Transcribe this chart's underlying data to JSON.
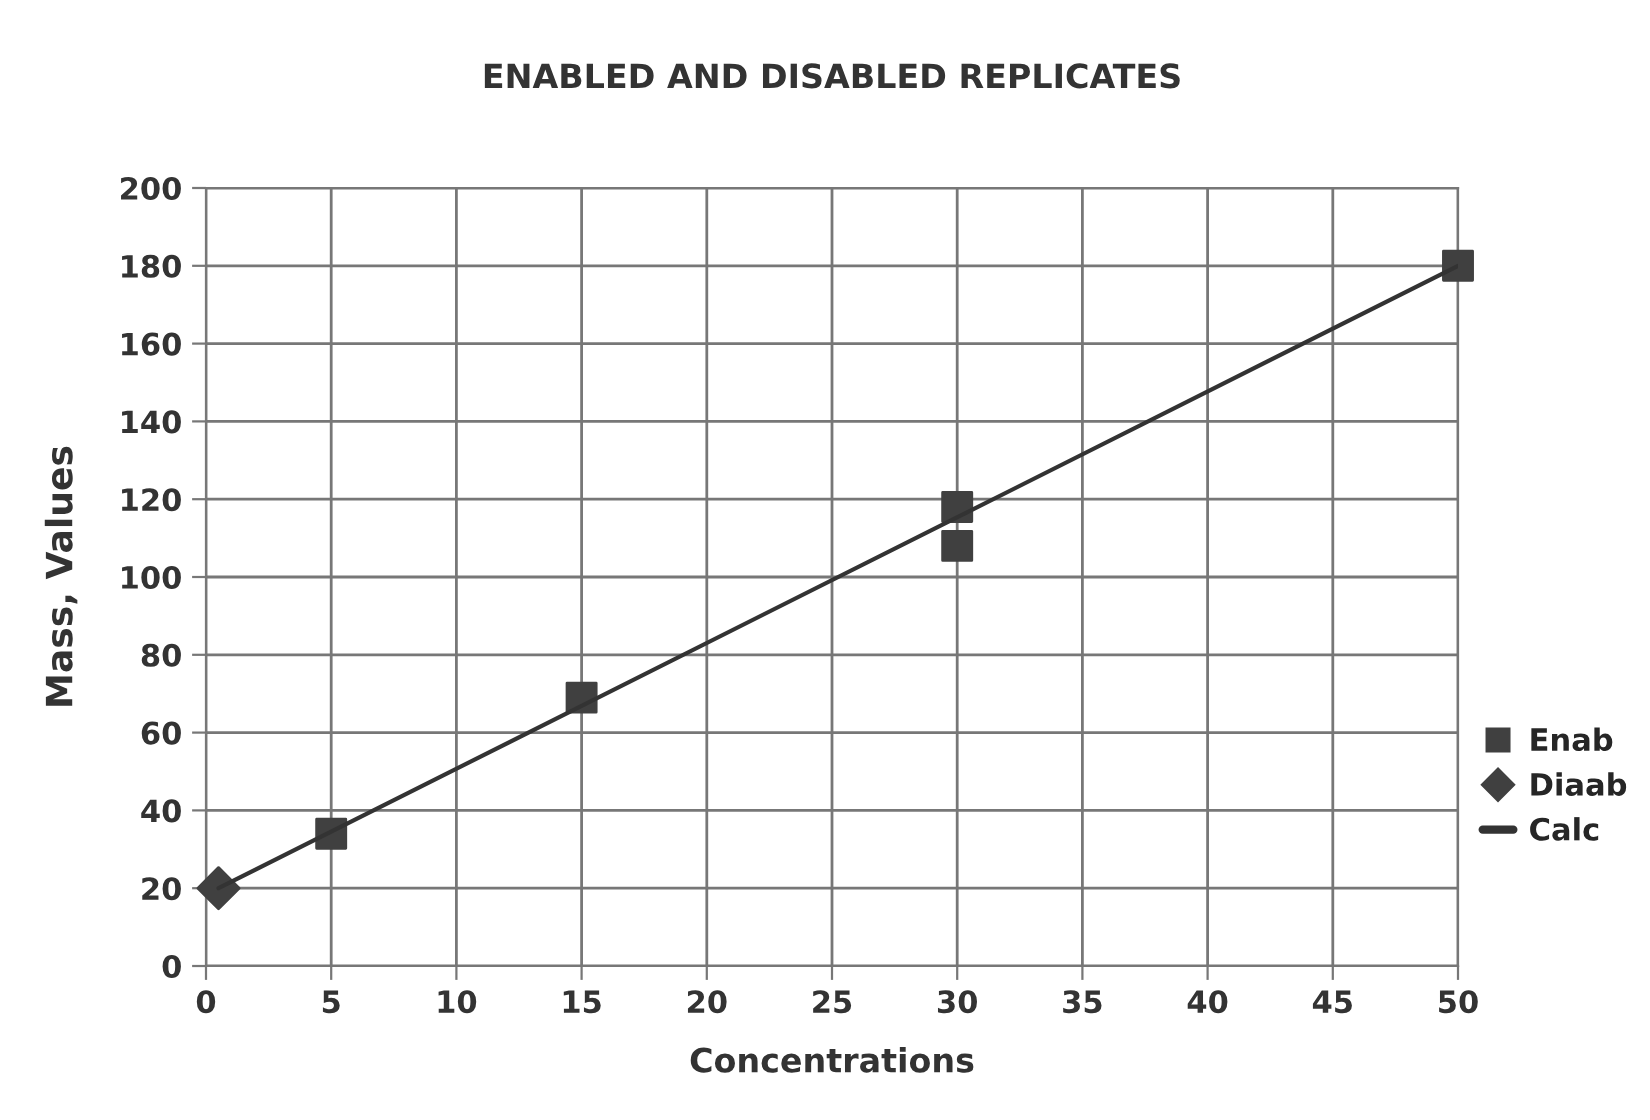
{
  "chart_data": {
    "type": "scatter",
    "title": "ENABLED AND DISABLED REPLICATES",
    "xlabel": "Concentrations",
    "ylabel": "Mass, Values",
    "series": [
      {
        "name": "Enab",
        "color": "#404040",
        "marker": "square",
        "x": [
          5,
          15,
          30,
          30,
          50
        ],
        "values": [
          34,
          69,
          108,
          118,
          180
        ]
      },
      {
        "name": "Diaab",
        "color": "#404040",
        "marker": "diamond",
        "x": [
          0.5
        ],
        "values": [
          20
        ]
      },
      {
        "name": "Calc",
        "type": "line",
        "color": "#333333",
        "marker": "none",
        "line_style": "solid",
        "x": [
          0.5,
          50
        ],
        "values": [
          20,
          180
        ]
      }
    ],
    "xlim": [
      0,
      50
    ],
    "xticks": [
      0,
      5,
      10,
      15,
      20,
      25,
      30,
      35,
      40,
      45,
      50
    ],
    "ylim": [
      0,
      200
    ],
    "yticks": [
      0,
      20,
      40,
      60,
      80,
      100,
      120,
      140,
      160,
      180,
      200
    ],
    "grid": true,
    "legend": "right"
  }
}
